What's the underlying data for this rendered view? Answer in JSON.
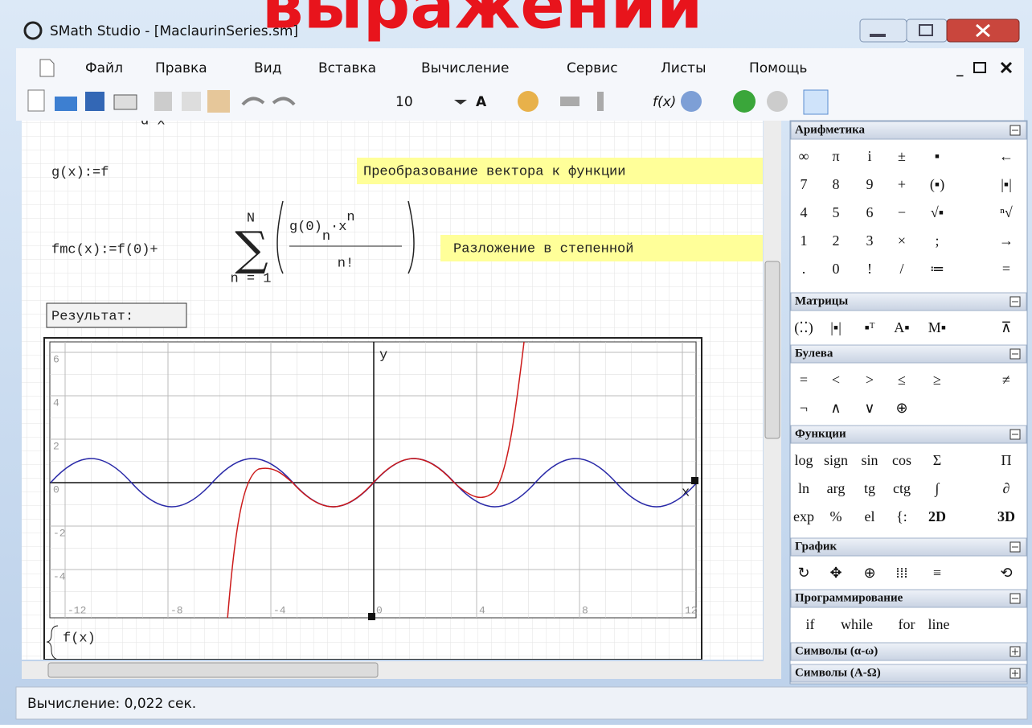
{
  "overlay_title": "выражений",
  "window": {
    "title": "SMath Studio - [MaclaurinSeries.sm]"
  },
  "menu": [
    "Файл",
    "Правка",
    "Вид",
    "Вставка",
    "Вычисление",
    "Сервис",
    "Листы",
    "Помощь"
  ],
  "toolbar": {
    "font_size": "10",
    "font_icon": "A",
    "function_icon": "f(x)"
  },
  "worksheet": {
    "top_fragment": "d x",
    "g_def": "g(x):=f",
    "g_note": "Преобразование вектора к функции",
    "fmc_lhs": "fmc(x):=f(0)+",
    "sum_upper": "N",
    "sum_lower": "n = 1",
    "numerator": {
      "base": "g(0)",
      "sub": "n",
      "mid": "·x",
      "sup": "n"
    },
    "denominator": "n!",
    "fmc_note": "Разложение в степенной",
    "result_label": "Результат:",
    "plot": {
      "x_label": "x",
      "y_label": "y",
      "xticks": [
        -12,
        -8,
        -4,
        0,
        4,
        8,
        12
      ],
      "yticks": [
        6,
        4,
        2,
        0,
        -2,
        -4
      ]
    },
    "bottom_fragment": "f(x)"
  },
  "panel": [
    {
      "title": "Арифметика",
      "rows": [
        [
          "∞",
          "π",
          "i",
          "±",
          "▪",
          "←"
        ],
        [
          "7",
          "8",
          "9",
          "+",
          "(▪)",
          "|▪|"
        ],
        [
          "4",
          "5",
          "6",
          "−",
          "√▪",
          "ⁿ√"
        ],
        [
          "1",
          "2",
          "3",
          "×",
          ";",
          "→"
        ],
        [
          ".",
          "0",
          "!",
          "/",
          "≔",
          "="
        ]
      ]
    },
    {
      "title": "Матрицы",
      "rows": [
        [
          "(⁚⁚)",
          "|▪|",
          "▪ᵀ",
          "A▪",
          "M▪",
          "⊼"
        ]
      ]
    },
    {
      "title": "Булева",
      "rows": [
        [
          "=",
          "<",
          ">",
          "≤",
          "≥",
          "≠"
        ],
        [
          "¬",
          "∧",
          "∨",
          "⊕"
        ]
      ]
    },
    {
      "title": "Функции",
      "rows": [
        [
          "log",
          "sign",
          "sin",
          "cos",
          "Σ",
          "Π"
        ],
        [
          "ln",
          "arg",
          "tg",
          "ctg",
          "∫",
          "∂"
        ],
        [
          "exp",
          "%",
          "el",
          "{:",
          "2D",
          "3D"
        ]
      ]
    },
    {
      "title": "График",
      "rows": [
        [
          "↻",
          "✥",
          "⊕",
          "⁞⁞⁞",
          "≡",
          "⟲"
        ]
      ]
    },
    {
      "title": "Программирование",
      "rows": [
        [
          "if",
          "while",
          "for",
          "line"
        ]
      ]
    },
    {
      "title": "Символы (α-ω)",
      "rows": []
    },
    {
      "title": "Символы (А-Ω)",
      "rows": []
    }
  ],
  "status": "Вычисление: 0,022 сек."
}
